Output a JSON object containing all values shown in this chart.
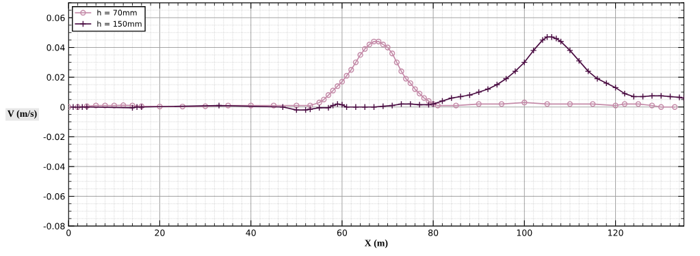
{
  "chart_data": {
    "type": "line",
    "xlabel": "X (m)",
    "ylabel": "V (m/s)",
    "xlim": [
      0,
      135
    ],
    "xticks": [
      0,
      20,
      40,
      60,
      80,
      100,
      120
    ],
    "ylim": [
      -0.08,
      0.07
    ],
    "yticks": [
      -0.08,
      -0.06,
      -0.04,
      -0.02,
      0,
      0.02,
      0.04,
      0.06
    ],
    "grid": true,
    "legend": "top left",
    "series": [
      {
        "name": "h = 70mm",
        "color": "#c48aa8",
        "marker": "circle",
        "x": [
          0,
          2,
          4,
          6,
          8,
          10,
          12,
          14,
          16,
          20,
          25,
          30,
          35,
          40,
          45,
          50,
          53,
          55,
          56,
          57,
          58,
          59,
          60,
          61,
          62,
          63,
          64,
          65,
          66,
          67,
          68,
          69,
          70,
          71,
          72,
          73,
          74,
          75,
          76,
          77,
          78,
          79,
          80,
          81,
          85,
          90,
          95,
          100,
          105,
          110,
          115,
          120,
          122,
          125,
          128,
          130,
          133
        ],
        "values": [
          0,
          0,
          0.0005,
          0.001,
          0.001,
          0.001,
          0.0012,
          0.001,
          0.0005,
          0.0003,
          0.0003,
          0.0005,
          0.001,
          0.001,
          0.001,
          0.001,
          0.001,
          0.003,
          0.005,
          0.008,
          0.011,
          0.014,
          0.017,
          0.021,
          0.025,
          0.03,
          0.035,
          0.039,
          0.042,
          0.044,
          0.044,
          0.042,
          0.04,
          0.036,
          0.03,
          0.024,
          0.019,
          0.016,
          0.012,
          0.009,
          0.006,
          0.004,
          0.002,
          0.001,
          0.001,
          0.002,
          0.002,
          0.003,
          0.002,
          0.002,
          0.002,
          0.001,
          0.002,
          0.002,
          0.001,
          0,
          0
        ]
      },
      {
        "name": "h = 150mm",
        "color": "#4a0c42",
        "marker": "cross",
        "x": [
          1,
          2,
          3,
          4,
          14,
          15,
          16,
          33,
          47,
          50,
          52,
          53,
          55,
          57,
          58,
          59,
          60,
          61,
          63,
          65,
          67,
          69,
          71,
          73,
          75,
          77,
          79,
          80,
          82,
          84,
          86,
          88,
          90,
          92,
          94,
          96,
          98,
          100,
          102,
          104,
          105,
          106,
          107,
          108,
          110,
          112,
          114,
          116,
          118,
          120,
          122,
          124,
          126,
          128,
          130,
          132,
          134,
          135
        ],
        "values": [
          0,
          0,
          0,
          0,
          -0.0005,
          0,
          0,
          0.001,
          0,
          -0.002,
          -0.002,
          -0.0015,
          -0.0005,
          -0.0005,
          0.001,
          0.002,
          0.0015,
          0,
          0,
          0,
          0,
          0.0005,
          0.001,
          0.002,
          0.002,
          0.0015,
          0.0015,
          0.002,
          0.004,
          0.006,
          0.007,
          0.008,
          0.01,
          0.012,
          0.015,
          0.019,
          0.024,
          0.03,
          0.038,
          0.045,
          0.047,
          0.047,
          0.046,
          0.044,
          0.038,
          0.031,
          0.024,
          0.019,
          0.016,
          0.013,
          0.009,
          0.007,
          0.007,
          0.0075,
          0.0075,
          0.007,
          0.0065,
          0.006
        ]
      }
    ]
  }
}
